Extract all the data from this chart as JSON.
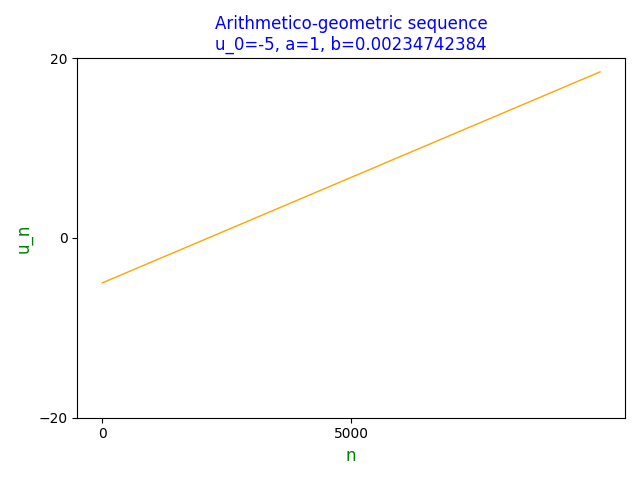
{
  "u_0": -5,
  "a": 1,
  "b": 0.00234742384,
  "n_points": 10000,
  "title_line1": "Arithmetico-geometric sequence",
  "title_line2": "u_0=-5, a=1, b=0.00234742384",
  "xlabel": "n",
  "ylabel": "u_n",
  "title_color": "blue",
  "xlabel_color": "green",
  "ylabel_color": "green",
  "line_color": "orange",
  "xlim": [
    -500,
    10500
  ],
  "ylim": [
    -20,
    20
  ],
  "xticks": [
    0,
    5000
  ],
  "yticks": [
    -20,
    0,
    20
  ],
  "figsize": [
    6.4,
    4.8
  ],
  "dpi": 100
}
